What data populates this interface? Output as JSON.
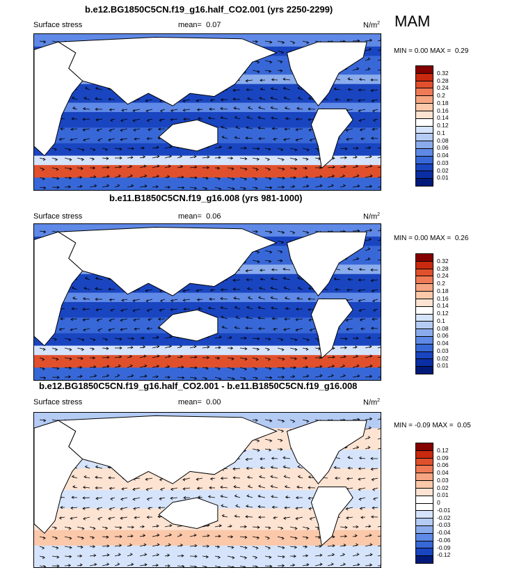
{
  "season": "MAM",
  "panels": [
    {
      "title": "b.e12.BG1850C5CN.f19_g16.half_CO2.001 (yrs 2250-2299)",
      "variable": "Surface stress",
      "mean_label": "mean=",
      "mean_value": "0.07",
      "units": "N/m",
      "units_exp": "2",
      "min_label": "MIN =",
      "min_value": "0.00",
      "max_label": "MAX =",
      "max_value": "0.29",
      "colorbar_ticks": [
        "0.32",
        "0.28",
        "0.24",
        "0.2",
        "0.18",
        "0.16",
        "0.14",
        "0.12",
        "0.1",
        "0.08",
        "0.06",
        "0.04",
        "0.03",
        "0.02",
        "0.01"
      ]
    },
    {
      "title": "b.e11.B1850C5CN.f19_g16.008 (yrs 981-1000)",
      "variable": "Surface stress",
      "mean_label": "mean=",
      "mean_value": "0.06",
      "units": "N/m",
      "units_exp": "2",
      "min_label": "MIN =",
      "min_value": "0.00",
      "max_label": "MAX =",
      "max_value": "0.26",
      "colorbar_ticks": [
        "0.32",
        "0.28",
        "0.24",
        "0.2",
        "0.18",
        "0.16",
        "0.14",
        "0.12",
        "0.1",
        "0.08",
        "0.06",
        "0.04",
        "0.03",
        "0.02",
        "0.01"
      ]
    },
    {
      "title": "b.e12.BG1850C5CN.f19_g16.half_CO2.001 - b.e11.B1850C5CN.f19_g16.008",
      "variable": "Surface stress",
      "mean_label": "mean=",
      "mean_value": "0.00",
      "units": "N/m",
      "units_exp": "2",
      "min_label": "MIN =",
      "min_value": "-0.09",
      "max_label": "MAX =",
      "max_value": "0.05",
      "colorbar_ticks": [
        "0.12",
        "0.09",
        "0.06",
        "0.04",
        "0.03",
        "0.02",
        "0.01",
        "0",
        "-0.01",
        "-0.02",
        "-0.03",
        "-0.04",
        "-0.06",
        "-0.09",
        "-0.12"
      ]
    }
  ],
  "colors": {
    "stress_scale": [
      "#850000",
      "#c8290f",
      "#e0502c",
      "#ef7a56",
      "#f6a582",
      "#fbc8aa",
      "#fde3d2",
      "#ffffff",
      "#d6e4fb",
      "#b4cbf4",
      "#8aaced",
      "#5f89e6",
      "#3868d8",
      "#1a45c0",
      "#0a2ea3",
      "#011a7a"
    ],
    "diff_scale": [
      "#850000",
      "#c8290f",
      "#e0502c",
      "#ef7a56",
      "#f6a582",
      "#fbc8aa",
      "#fde3d2",
      "#ffffff",
      "#ffffff",
      "#d6e4fb",
      "#b4cbf4",
      "#8aaced",
      "#5f89e6",
      "#3868d8",
      "#1a45c0",
      "#011a7a"
    ],
    "land": "#ffffff"
  }
}
